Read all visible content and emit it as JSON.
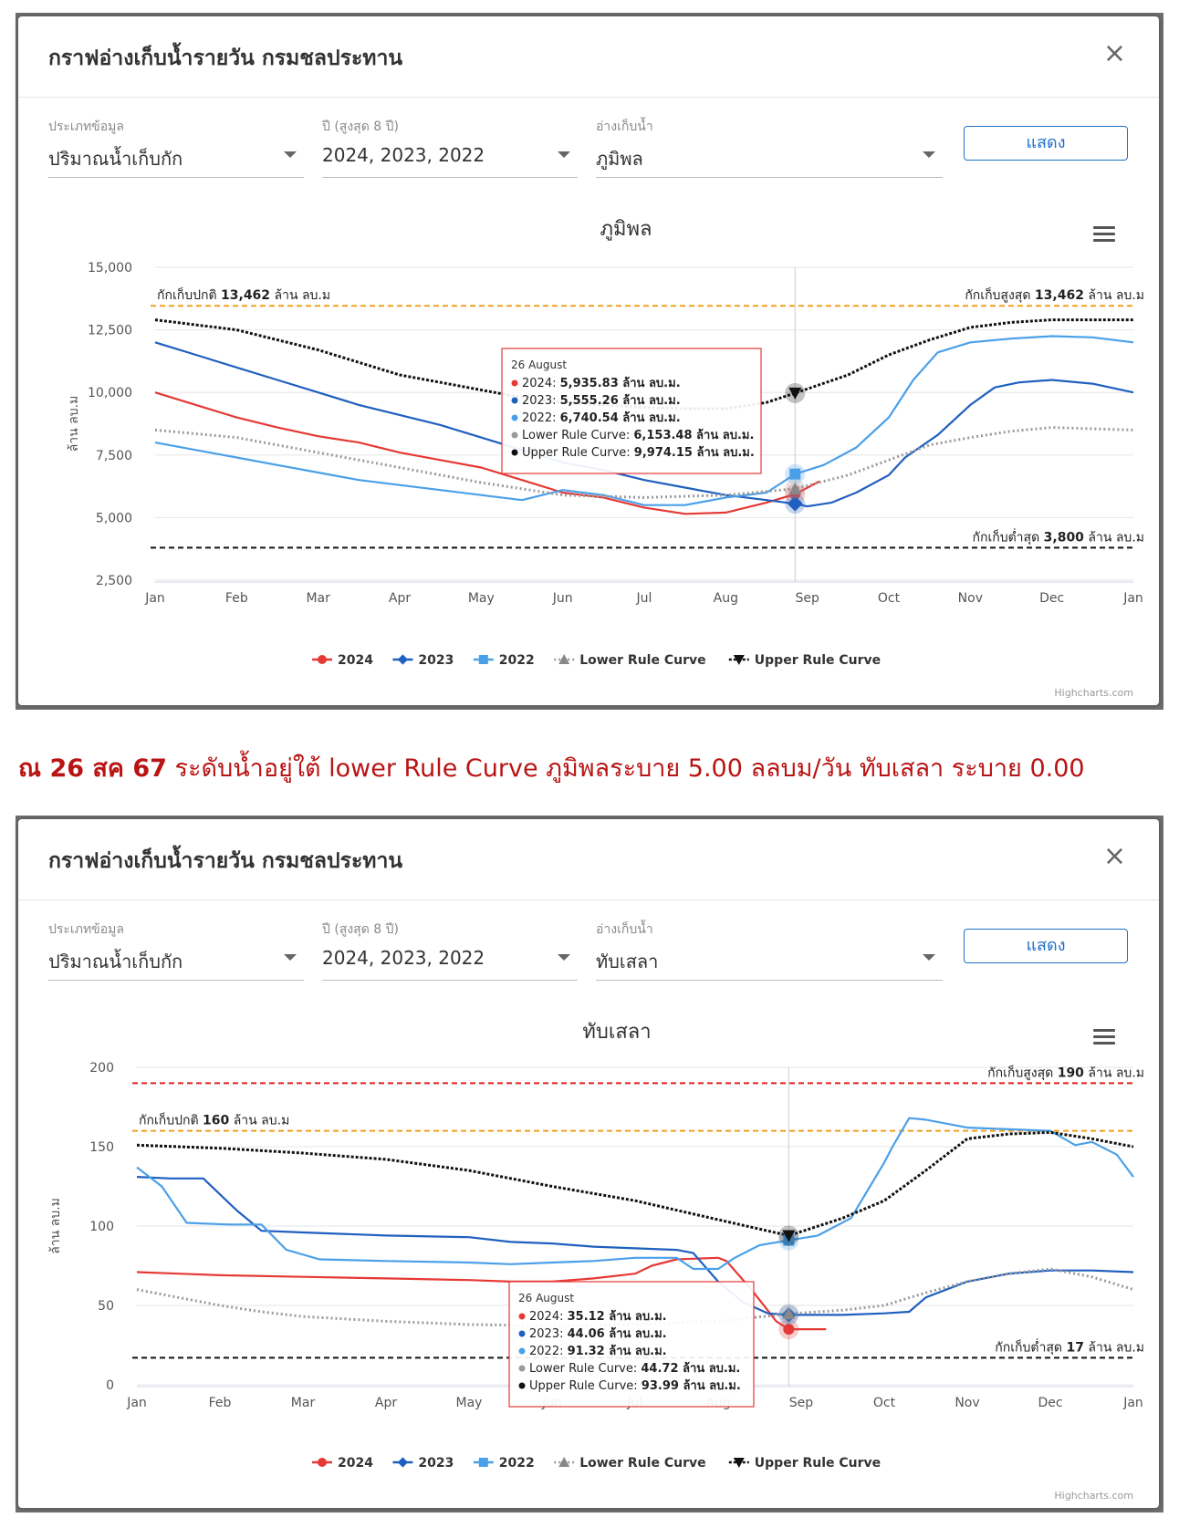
{
  "caption": {
    "prefix": "ณ 26 สค 67",
    "text": "ระดับน้ำอยู่ใต้ lower Rule Curve ภูมิพลระบาย 5.00 ลลบม/วัน  ทับเสลา ระบาย 0.00"
  },
  "panels": [
    {
      "dialog_title": "กราฟอ่างเก็บน้ำรายวัน กรมชลประทาน",
      "close_glyph": "×",
      "fields": [
        {
          "label": "ประเภทข้อมูล",
          "value": "ปริมาณน้ำเก็บกัก"
        },
        {
          "label": "ปี (สูงสุด 8 ปี)",
          "value": "2024, 2023, 2022"
        },
        {
          "label": "อ่างเก็บน้ำ",
          "value": "ภูมิพล"
        }
      ],
      "show_button": "แสดง",
      "chart_data": {
        "type": "line",
        "title": "ภูมิพล",
        "ylabel": "ล้าน ลบ.ม",
        "ylim": [
          2500,
          15000
        ],
        "yticks": [
          "15,000",
          "12,500",
          "10,000",
          "7,500",
          "5,000",
          "2,500"
        ],
        "ytick_values": [
          15000,
          12500,
          10000,
          7500,
          5000,
          2500
        ],
        "x_ticks": [
          "Jan",
          "Feb",
          "Mar",
          "Apr",
          "May",
          "Jun",
          "Jul",
          "Aug",
          "Sep",
          "Oct",
          "Nov",
          "Dec",
          "Jan"
        ],
        "x_unit": "month",
        "hlines": [
          {
            "value": 13462,
            "color": "#f0a020",
            "label_left": "กักเก็บปกติ",
            "label_left_bold": "13,462",
            "label_left_unit": "ล้าน ลบ.ม",
            "label_right": "กักเก็บสูงสุด",
            "label_right_bold": "13,462",
            "label_right_unit": "ล้าน ลบ.ม"
          },
          {
            "value": 3800,
            "color": "#111111",
            "label_right": "กักเก็บต่ำสุด",
            "label_right_bold": "3,800",
            "label_right_unit": "ล้าน ลบ.ม"
          }
        ],
        "crosshair_x": 7.85,
        "series": [
          {
            "name": "2024",
            "color": "#e53935",
            "dash": "",
            "x": [
              0,
              0.5,
              1,
              1.5,
              2,
              2.5,
              3,
              3.5,
              4,
              4.5,
              5,
              5.5,
              6,
              6.5,
              7,
              7.5,
              7.85,
              8.15
            ],
            "y": [
              10000,
              9500,
              9000,
              8600,
              8250,
              8000,
              7600,
              7300,
              7000,
              6500,
              6000,
              5800,
              5400,
              5150,
              5200,
              5600,
              5936,
              6450
            ]
          },
          {
            "name": "2023",
            "color": "#1f5fbf",
            "dash": "",
            "x": [
              0,
              0.5,
              1,
              1.5,
              2,
              2.5,
              3,
              3.5,
              4,
              4.5,
              5,
              5.5,
              6,
              6.5,
              7,
              7.5,
              7.85,
              8,
              8.3,
              8.6,
              9,
              9.2,
              9.6,
              10,
              10.3,
              10.6,
              11,
              11.5,
              12
            ],
            "y": [
              12000,
              11500,
              11000,
              10500,
              10000,
              9500,
              9100,
              8700,
              8200,
              7700,
              7200,
              6900,
              6500,
              6200,
              5900,
              5700,
              5555,
              5450,
              5600,
              6000,
              6700,
              7400,
              8300,
              9500,
              10200,
              10400,
              10500,
              10350,
              10000
            ]
          },
          {
            "name": "2022",
            "color": "#4aa0e8",
            "dash": "",
            "x": [
              0,
              0.5,
              1,
              1.5,
              2,
              2.5,
              3,
              3.5,
              4,
              4.5,
              5,
              5.5,
              6,
              6.5,
              7,
              7.5,
              7.85,
              8.2,
              8.6,
              9,
              9.3,
              9.6,
              10,
              10.5,
              11,
              11.5,
              12
            ],
            "y": [
              8000,
              7700,
              7400,
              7100,
              6800,
              6500,
              6300,
              6100,
              5900,
              5700,
              6100,
              5900,
              5500,
              5500,
              5800,
              6000,
              6740,
              7100,
              7800,
              9000,
              10500,
              11600,
              12000,
              12150,
              12250,
              12200,
              12000
            ]
          },
          {
            "name": "Lower Rule Curve",
            "color": "#9a9a9a",
            "dash": "2,3",
            "x": [
              0,
              1,
              2,
              3,
              4,
              5,
              6,
              7,
              7.85,
              8.5,
              9,
              9.5,
              10,
              10.5,
              11,
              11.5,
              12
            ],
            "y": [
              8500,
              8200,
              7600,
              7000,
              6400,
              5900,
              5800,
              5900,
              6153,
              6700,
              7300,
              7900,
              8200,
              8450,
              8600,
              8550,
              8500
            ]
          },
          {
            "name": "Upper Rule Curve",
            "color": "#111111",
            "dash": "3,2",
            "x": [
              0,
              1,
              2,
              2.5,
              3,
              3.5,
              4,
              4.5,
              5,
              5.5,
              6,
              6.5,
              7,
              7.5,
              7.85,
              8.5,
              9,
              9.5,
              10,
              10.5,
              11,
              11.5,
              12
            ],
            "y": [
              12900,
              12500,
              11700,
              11200,
              10700,
              10400,
              10100,
              9800,
              9600,
              9500,
              9400,
              9350,
              9350,
              9600,
              9974,
              10700,
              11500,
              12100,
              12600,
              12800,
              12900,
              12900,
              12900
            ]
          }
        ],
        "tooltip": {
          "title": "26 August",
          "rows": [
            {
              "label": "2024:",
              "value": "5,935.83",
              "unit": "ล้าน ลบ.ม.",
              "color": "#e53935"
            },
            {
              "label": "2023:",
              "value": "5,555.26",
              "unit": "ล้าน ลบ.ม.",
              "color": "#1f5fbf"
            },
            {
              "label": "2022:",
              "value": "6,740.54",
              "unit": "ล้าน ลบ.ม.",
              "color": "#4aa0e8"
            },
            {
              "label": "Lower Rule Curve:",
              "value": "6,153.48",
              "unit": "ล้าน ลบ.ม.",
              "color": "#9a9a9a"
            },
            {
              "label": "Upper Rule Curve:",
              "value": "9,974.15",
              "unit": "ล้าน ลบ.ม.",
              "color": "#111111"
            }
          ]
        },
        "legend": [
          "2024",
          "2023",
          "2022",
          "Lower Rule Curve",
          "Upper Rule Curve"
        ],
        "credit": "Highcharts.com"
      }
    },
    {
      "dialog_title": "กราฟอ่างเก็บน้ำรายวัน กรมชลประทาน",
      "close_glyph": "×",
      "fields": [
        {
          "label": "ประเภทข้อมูล",
          "value": "ปริมาณน้ำเก็บกัก"
        },
        {
          "label": "ปี (สูงสุด 8 ปี)",
          "value": "2024, 2023, 2022"
        },
        {
          "label": "อ่างเก็บน้ำ",
          "value": "ทับเสลา"
        }
      ],
      "show_button": "แสดง",
      "chart_data": {
        "type": "line",
        "title": "ทับเสลา",
        "ylabel": "ล้าน ลบ.ม",
        "ylim": [
          0,
          200
        ],
        "yticks": [
          "200",
          "150",
          "100",
          "50",
          "0"
        ],
        "ytick_values": [
          200,
          150,
          100,
          50,
          0
        ],
        "x_ticks": [
          "Jan",
          "Feb",
          "Mar",
          "Apr",
          "May",
          "Jun",
          "Jul",
          "Aug",
          "Sep",
          "Oct",
          "Nov",
          "Dec",
          "Jan"
        ],
        "x_unit": "month",
        "hlines": [
          {
            "value": 190,
            "color": "#e02020",
            "label_right": "กักเก็บสูงสุด",
            "label_right_bold": "190",
            "label_right_unit": "ล้าน ลบ.ม"
          },
          {
            "value": 160,
            "color": "#f0a020",
            "label_left": "กักเก็บปกติ",
            "label_left_bold": "160",
            "label_left_unit": "ล้าน ลบ.ม"
          },
          {
            "value": 17,
            "color": "#111111",
            "label_right": "กักเก็บต่ำสุด",
            "label_right_bold": "17",
            "label_right_unit": "ล้าน ลบ.ม"
          }
        ],
        "crosshair_x": 7.85,
        "series": [
          {
            "name": "2024",
            "color": "#e53935",
            "dash": "",
            "x": [
              0,
              0.5,
              1,
              2,
              3,
              4,
              4.5,
              5,
              5.5,
              6,
              6.2,
              6.5,
              7,
              7.1,
              7.4,
              7.7,
              7.85,
              8.3
            ],
            "y": [
              71,
              70,
              69,
              68,
              67,
              66,
              65,
              65,
              67,
              70,
              75,
              79,
              80,
              78,
              60,
              40,
              35,
              35
            ]
          },
          {
            "name": "2023",
            "color": "#1f5fbf",
            "dash": "",
            "x": [
              0,
              0.4,
              0.8,
              1.2,
              1.5,
              2,
              3,
              4,
              4.5,
              5,
              5.5,
              6,
              6.5,
              6.7,
              7,
              7.3,
              7.6,
              7.85,
              8,
              8.5,
              9,
              9.3,
              9.5,
              10,
              10.5,
              11,
              11.5,
              12
            ],
            "y": [
              131,
              130,
              130,
              110,
              97,
              96,
              94,
              93,
              90,
              89,
              87,
              86,
              85,
              83,
              65,
              52,
              45,
              44,
              44,
              44,
              45,
              46,
              55,
              65,
              70,
              72,
              72,
              71
            ]
          },
          {
            "name": "2022",
            "color": "#4aa0e8",
            "dash": "",
            "x": [
              0,
              0.3,
              0.6,
              1.1,
              1.5,
              1.8,
              2.2,
              3,
              4,
              4.5,
              5,
              5.5,
              6,
              6.5,
              6.7,
              7,
              7.2,
              7.5,
              7.85,
              8.2,
              8.6,
              9,
              9.1,
              9.3,
              9.5,
              10,
              10.5,
              11,
              11.3,
              11.5,
              11.8,
              12
            ],
            "y": [
              137,
              125,
              102,
              101,
              101,
              85,
              79,
              78,
              77,
              76,
              77,
              78,
              80,
              80,
              73,
              73,
              80,
              88,
              91,
              94,
              105,
              140,
              150,
              168,
              167,
              162,
              161,
              160,
              151,
              153,
              145,
              131
            ]
          },
          {
            "name": "Lower Rule Curve",
            "color": "#9a9a9a",
            "dash": "2,3",
            "x": [
              0,
              0.5,
              1,
              1.5,
              2,
              3,
              4,
              5,
              6,
              7,
              7.85,
              8.5,
              9,
              9.5,
              10,
              10.5,
              11,
              11.5,
              12
            ],
            "y": [
              60,
              55,
              50,
              46,
              43,
              40,
              38,
              37,
              38,
              40,
              44.72,
              47,
              50,
              58,
              65,
              70,
              73,
              68,
              60
            ]
          },
          {
            "name": "Upper Rule Curve",
            "color": "#111111",
            "dash": "3,2",
            "x": [
              0,
              1,
              2,
              3,
              4,
              5,
              6,
              7,
              7.85,
              8.5,
              9,
              9.5,
              10,
              10.5,
              11,
              11.5,
              12
            ],
            "y": [
              151,
              149,
              146,
              142,
              135,
              125,
              116,
              104,
              93.99,
              105,
              116,
              135,
              155,
              158,
              159,
              155,
              150
            ]
          }
        ],
        "tooltip": {
          "title": "26 August",
          "rows": [
            {
              "label": "2024:",
              "value": "35.12",
              "unit": "ล้าน ลบ.ม.",
              "color": "#e53935"
            },
            {
              "label": "2023:",
              "value": "44.06",
              "unit": "ล้าน ลบ.ม.",
              "color": "#1f5fbf"
            },
            {
              "label": "2022:",
              "value": "91.32",
              "unit": "ล้าน ลบ.ม.",
              "color": "#4aa0e8"
            },
            {
              "label": "Lower Rule Curve:",
              "value": "44.72",
              "unit": "ล้าน ลบ.ม.",
              "color": "#9a9a9a"
            },
            {
              "label": "Upper Rule Curve:",
              "value": "93.99",
              "unit": "ล้าน ลบ.ม.",
              "color": "#111111"
            }
          ]
        },
        "legend": [
          "2024",
          "2023",
          "2022",
          "Lower Rule Curve",
          "Upper Rule Curve"
        ],
        "credit": "Highcharts.com"
      }
    }
  ]
}
